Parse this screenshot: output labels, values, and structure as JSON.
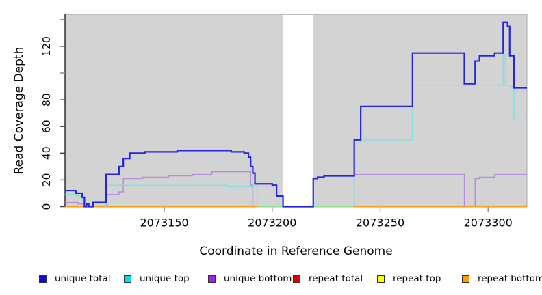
{
  "chart_data": {
    "type": "line",
    "subtype": "step-coverage",
    "title": "",
    "xlabel": "Coordinate in Reference Genome",
    "ylabel": "Read Coverage Depth",
    "x_domain": [
      2073104,
      2073318
    ],
    "y_domain": [
      0,
      144
    ],
    "grid": false,
    "legend_position": "bottom",
    "panel": {
      "fill": "#d3d3d3",
      "border": "#a9a9a9"
    },
    "axis_color": "#000000",
    "tick_color_labeled": "#404040",
    "tick_color_unlabeled": "#8c8c8c",
    "x_ticks": [
      {
        "value": 2073150,
        "label": "2073150"
      },
      {
        "value": 2073200,
        "label": "2073200"
      },
      {
        "value": 2073250,
        "label": "2073250"
      },
      {
        "value": 2073300,
        "label": "2073300"
      }
    ],
    "y_ticks": [
      {
        "value": 0,
        "label": "0"
      },
      {
        "value": 20,
        "label": "20"
      },
      {
        "value": 40,
        "label": "40"
      },
      {
        "value": 60,
        "label": "60"
      },
      {
        "value": 80,
        "label": "80"
      },
      {
        "value": 100,
        "label": ""
      },
      {
        "value": 120,
        "label": "120"
      },
      {
        "value": 140,
        "label": ""
      }
    ],
    "gap_region": {
      "x_start": 2073205,
      "x_end": 2073219,
      "fill": "#ffffff",
      "note": "no-data white band"
    },
    "baseline_overlap_segments": {
      "color": "#8fe390",
      "ranges": [
        [
          2073193,
          2073205
        ],
        [
          2073219,
          2073238
        ]
      ]
    },
    "series": [
      {
        "name": "unique total",
        "color": "#2424dc",
        "width": 2.2,
        "draw_zero": true,
        "points": [
          [
            2073104,
            12
          ],
          [
            2073109,
            10
          ],
          [
            2073112,
            7
          ],
          [
            2073113,
            0
          ],
          [
            2073114,
            2
          ],
          [
            2073115,
            0
          ],
          [
            2073117,
            3
          ],
          [
            2073123,
            24
          ],
          [
            2073129,
            30
          ],
          [
            2073131,
            36
          ],
          [
            2073134,
            40
          ],
          [
            2073141,
            41
          ],
          [
            2073156,
            42
          ],
          [
            2073181,
            41
          ],
          [
            2073187,
            40
          ],
          [
            2073189,
            37
          ],
          [
            2073190,
            30
          ],
          [
            2073191,
            25
          ],
          [
            2073192,
            17
          ],
          [
            2073200,
            16
          ],
          [
            2073202,
            8
          ],
          [
            2073205,
            0
          ],
          [
            2073219,
            21
          ],
          [
            2073221,
            22
          ],
          [
            2073224,
            23
          ],
          [
            2073238,
            50
          ],
          [
            2073241,
            75
          ],
          [
            2073265,
            115
          ],
          [
            2073289,
            92
          ],
          [
            2073294,
            109
          ],
          [
            2073296,
            113
          ],
          [
            2073303,
            115
          ],
          [
            2073307,
            138
          ],
          [
            2073309,
            135
          ],
          [
            2073310,
            113
          ],
          [
            2073312,
            89
          ],
          [
            2073318,
            89
          ]
        ]
      },
      {
        "name": "unique top",
        "color": "#7de2e2",
        "width": 1.5,
        "draw_zero": false,
        "points": [
          [
            2073104,
            9
          ],
          [
            2073109,
            8
          ],
          [
            2073112,
            5
          ],
          [
            2073113,
            0
          ],
          [
            2073123,
            16
          ],
          [
            2073179,
            15
          ],
          [
            2073193,
            0
          ],
          [
            2073238,
            50
          ],
          [
            2073265,
            91
          ],
          [
            2073307,
            114
          ],
          [
            2073308,
            91
          ],
          [
            2073310,
            90
          ],
          [
            2073312,
            65
          ],
          [
            2073318,
            65
          ]
        ]
      },
      {
        "name": "unique bottom",
        "color": "#b58fd8",
        "width": 1.5,
        "draw_zero": false,
        "points": [
          [
            2073104,
            3
          ],
          [
            2073110,
            2
          ],
          [
            2073113,
            0
          ],
          [
            2073123,
            9
          ],
          [
            2073129,
            11
          ],
          [
            2073131,
            21
          ],
          [
            2073140,
            22
          ],
          [
            2073152,
            23
          ],
          [
            2073163,
            24
          ],
          [
            2073172,
            26
          ],
          [
            2073190,
            16
          ],
          [
            2073191,
            0
          ],
          [
            2073238,
            24
          ],
          [
            2073289,
            0
          ],
          [
            2073294,
            21
          ],
          [
            2073296,
            22
          ],
          [
            2073303,
            24
          ],
          [
            2073318,
            24
          ]
        ]
      },
      {
        "name": "repeat total",
        "color": "#dc1414",
        "width": 1.5,
        "draw_zero": true,
        "points": [
          [
            2073104,
            0
          ],
          [
            2073318,
            0
          ]
        ]
      },
      {
        "name": "repeat top",
        "color": "#f0f02a",
        "width": 1.5,
        "draw_zero": true,
        "points": [
          [
            2073104,
            0
          ],
          [
            2073318,
            0
          ]
        ]
      },
      {
        "name": "repeat bottom",
        "color": "#ff9c10",
        "width": 1.8,
        "draw_zero": true,
        "points": [
          [
            2073104,
            0
          ],
          [
            2073318,
            0
          ]
        ]
      }
    ]
  },
  "legend": {
    "items": [
      {
        "label": "unique total",
        "color": "#0a0ae6"
      },
      {
        "label": "unique top",
        "color": "#00e0e8"
      },
      {
        "label": "unique bottom",
        "color": "#a020f0"
      },
      {
        "label": "repeat total",
        "color": "#e80000"
      },
      {
        "label": "repeat top",
        "color": "#ffff00"
      },
      {
        "label": "repeat bottom",
        "color": "#ffa200"
      }
    ]
  }
}
